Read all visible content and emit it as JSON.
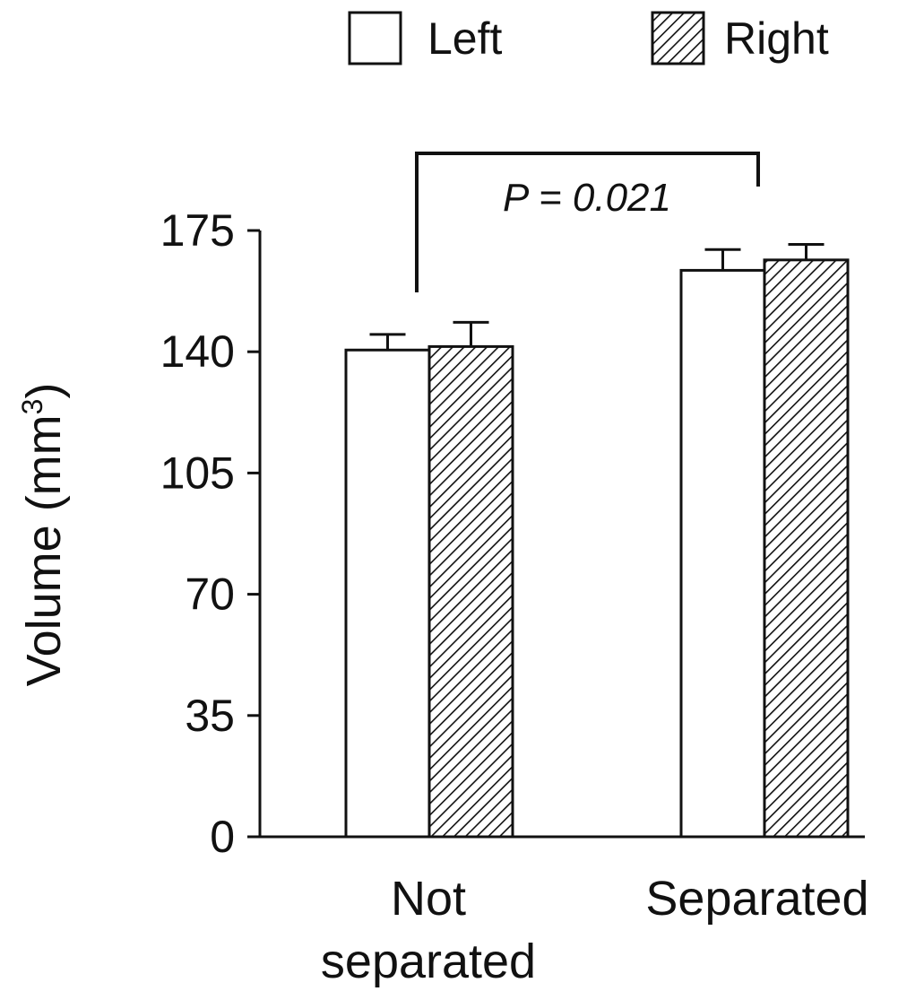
{
  "chart_data": {
    "type": "bar",
    "categories": [
      "Not separated",
      "Separated"
    ],
    "category_lines": [
      [
        "Not",
        "separated"
      ],
      [
        "Separated"
      ]
    ],
    "series": [
      {
        "name": "Left",
        "values": [
          140.5,
          163.5
        ],
        "errors": [
          4.5,
          6.0
        ],
        "fill": "#ffffff",
        "pattern": "none"
      },
      {
        "name": "Right",
        "values": [
          141.5,
          166.5
        ],
        "errors": [
          7.0,
          4.5
        ],
        "fill": "#ffffff",
        "pattern": "diagonal-hatch"
      }
    ],
    "ylabel": "Volume (mm",
    "ylabel_sup": "3",
    "ylabel_close": ")",
    "ylim": [
      0,
      175
    ],
    "yticks": [
      "0",
      "35",
      "70",
      "105",
      "140",
      "175"
    ],
    "ytick_values": [
      0,
      35,
      70,
      105,
      140,
      175
    ],
    "annotation": {
      "text": "P = 0.021",
      "between": [
        "Not separated",
        "Separated"
      ]
    },
    "legend": {
      "placement": "top-right",
      "entries": [
        "Left",
        "Right"
      ]
    },
    "grid": false
  }
}
